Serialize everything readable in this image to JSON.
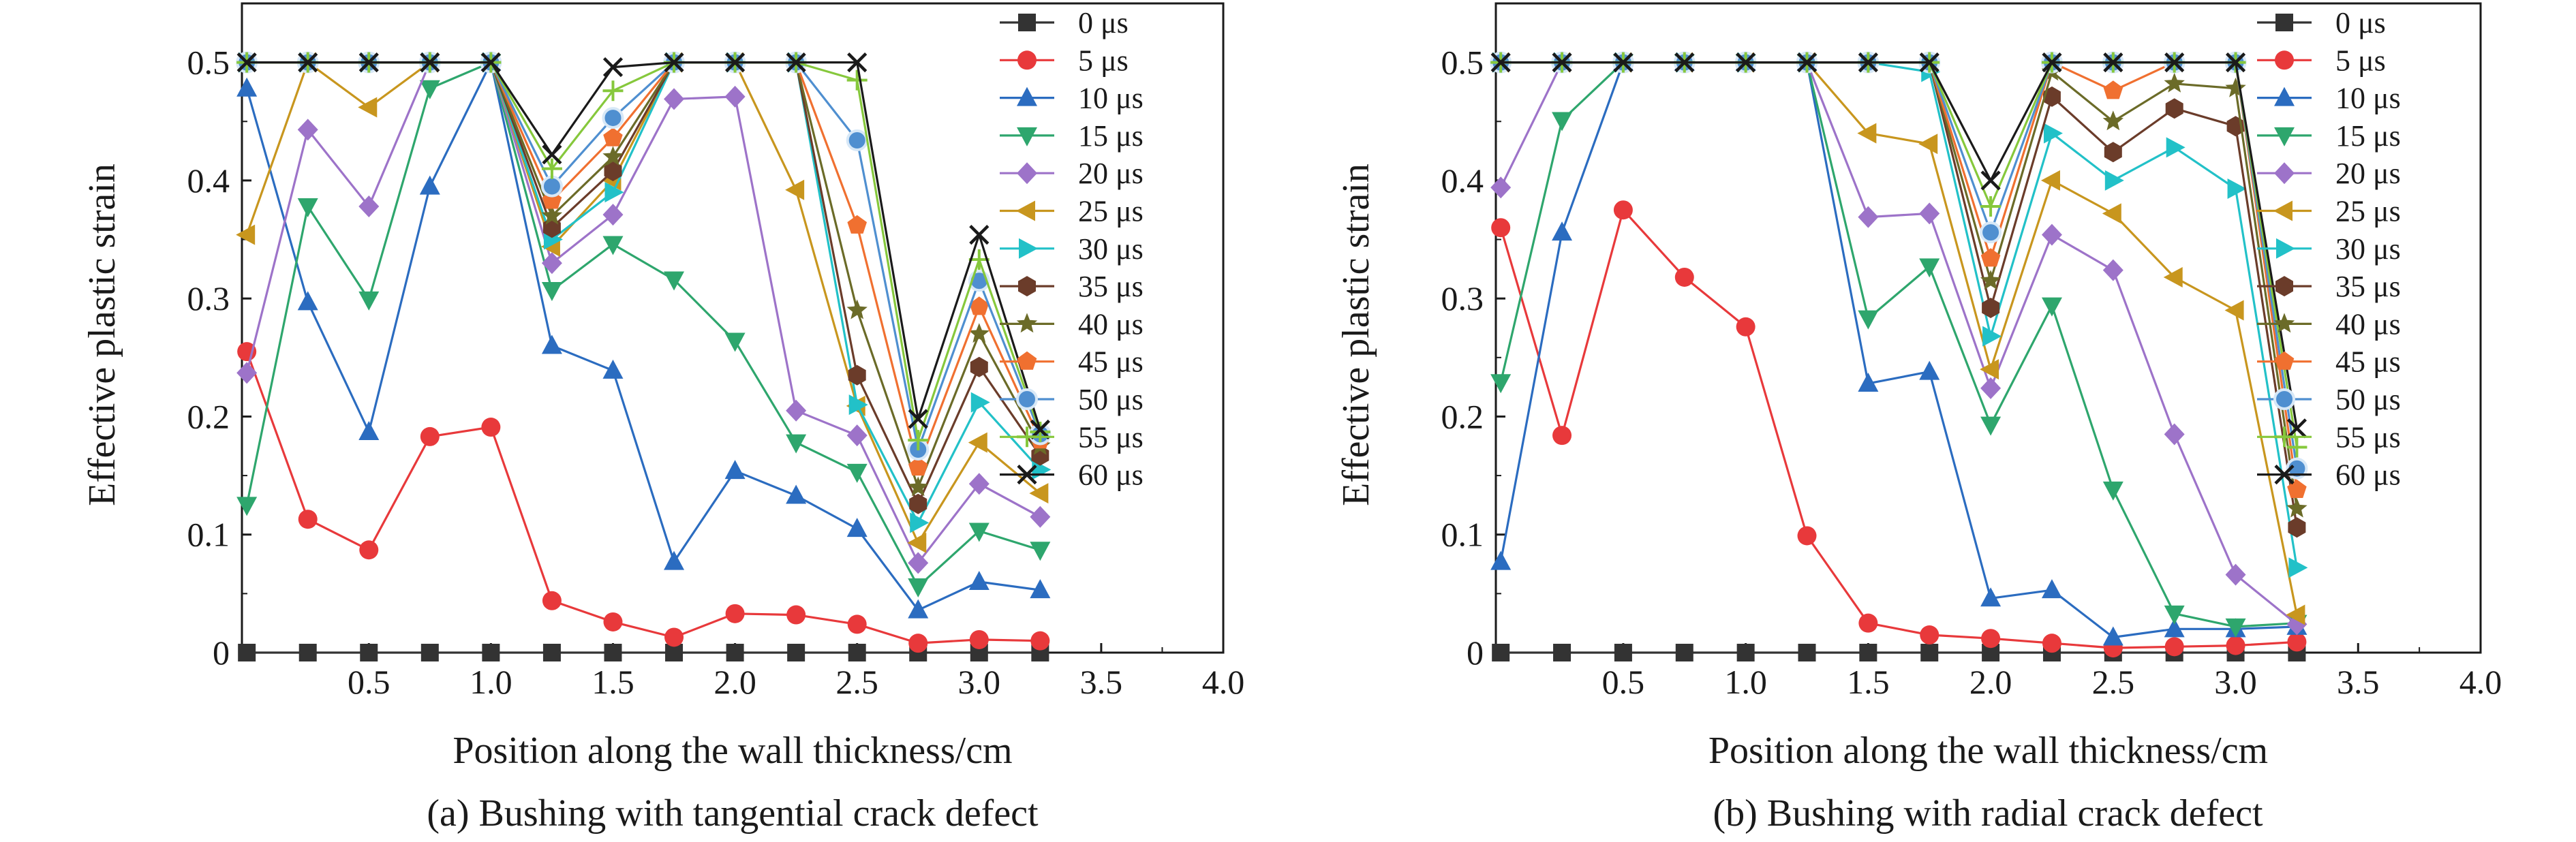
{
  "chart_data": [
    {
      "type": "line",
      "caption": "(a) Bushing with tangential crack defect",
      "xlabel": "Position along the wall thickness/cm",
      "ylabel": "Effective plastic strain",
      "xlim": [
        -0.02,
        4.0
      ],
      "ylim": [
        0,
        0.55
      ],
      "xticks": [
        "0.5",
        "1.0",
        "1.5",
        "2.0",
        "2.5",
        "3.0",
        "3.5",
        "4.0"
      ],
      "yticks": [
        "0",
        "0.1",
        "0.2",
        "0.3",
        "0.4",
        "0.5"
      ],
      "legend_position": "top-right",
      "x": [
        0,
        0.25,
        0.5,
        0.75,
        1.0,
        1.25,
        1.5,
        1.75,
        2.0,
        2.25,
        2.5,
        2.75,
        3.0,
        3.25
      ],
      "series": [
        {
          "name": "0 μs",
          "color": "#333333",
          "marker": "square",
          "values": [
            0,
            0,
            0,
            0,
            0,
            0,
            0,
            0,
            0,
            0,
            0,
            0,
            0,
            0
          ]
        },
        {
          "name": "5 μs",
          "color": "#e8393b",
          "marker": "circle",
          "values": [
            0.255,
            0.113,
            0.087,
            0.183,
            0.191,
            0.044,
            0.026,
            0.013,
            0.033,
            0.032,
            0.024,
            0.008,
            0.011,
            0.01
          ]
        },
        {
          "name": "10 μs",
          "color": "#2b6cc0",
          "marker": "triangle-up",
          "values": [
            0.478,
            0.297,
            0.187,
            0.395,
            0.5,
            0.26,
            0.239,
            0.077,
            0.154,
            0.133,
            0.105,
            0.036,
            0.06,
            0.053
          ]
        },
        {
          "name": "15 μs",
          "color": "#2ea66d",
          "marker": "triangle-down",
          "values": [
            0.125,
            0.378,
            0.299,
            0.478,
            0.5,
            0.307,
            0.346,
            0.316,
            0.264,
            0.178,
            0.153,
            0.056,
            0.103,
            0.087
          ]
        },
        {
          "name": "20 μs",
          "color": "#9d73c9",
          "marker": "diamond",
          "values": [
            0.237,
            0.443,
            0.378,
            0.5,
            0.5,
            0.33,
            0.371,
            0.469,
            0.471,
            0.205,
            0.184,
            0.076,
            0.143,
            0.115
          ]
        },
        {
          "name": "25 μs",
          "color": "#c8961e",
          "marker": "triangle-left",
          "values": [
            0.354,
            0.5,
            0.462,
            0.5,
            0.5,
            0.344,
            0.4,
            0.5,
            0.5,
            0.392,
            0.209,
            0.093,
            0.178,
            0.135
          ]
        },
        {
          "name": "30 μs",
          "color": "#22c1c8",
          "marker": "triangle-right",
          "values": [
            0.5,
            0.5,
            0.5,
            0.5,
            0.5,
            0.35,
            0.39,
            0.5,
            0.5,
            0.5,
            0.21,
            0.11,
            0.212,
            0.155
          ]
        },
        {
          "name": "35 μs",
          "color": "#6b3c2a",
          "marker": "hexagon",
          "values": [
            0.5,
            0.5,
            0.5,
            0.5,
            0.5,
            0.36,
            0.408,
            0.5,
            0.5,
            0.5,
            0.235,
            0.126,
            0.242,
            0.167
          ]
        },
        {
          "name": "40 μs",
          "color": "#6b6b28",
          "marker": "star",
          "values": [
            0.5,
            0.5,
            0.5,
            0.5,
            0.5,
            0.37,
            0.42,
            0.5,
            0.5,
            0.5,
            0.29,
            0.14,
            0.27,
            0.175
          ]
        },
        {
          "name": "45 μs",
          "color": "#f07030",
          "marker": "pentagon",
          "values": [
            0.5,
            0.5,
            0.5,
            0.5,
            0.5,
            0.383,
            0.436,
            0.5,
            0.5,
            0.5,
            0.362,
            0.157,
            0.293,
            0.18
          ]
        },
        {
          "name": "50 μs",
          "color": "#4f8fd0",
          "marker": "sphere",
          "values": [
            0.5,
            0.5,
            0.5,
            0.5,
            0.5,
            0.395,
            0.453,
            0.5,
            0.5,
            0.5,
            0.434,
            0.172,
            0.315,
            0.185
          ]
        },
        {
          "name": "55 μs",
          "color": "#86c83c",
          "marker": "plus",
          "values": [
            0.5,
            0.5,
            0.5,
            0.5,
            0.5,
            0.41,
            0.476,
            0.5,
            0.5,
            0.5,
            0.485,
            0.18,
            0.333,
            0.187
          ]
        },
        {
          "name": "60 μs",
          "color": "#1a1a1a",
          "marker": "x",
          "values": [
            0.5,
            0.5,
            0.5,
            0.5,
            0.5,
            0.422,
            0.496,
            0.5,
            0.5,
            0.5,
            0.5,
            0.198,
            0.354,
            0.189
          ]
        }
      ]
    },
    {
      "type": "line",
      "caption": "(b) Bushing with radial crack defect",
      "xlabel": "Position along the wall thickness/cm",
      "ylabel": "Effective plastic strain",
      "xlim": [
        -0.02,
        4.0
      ],
      "ylim": [
        0,
        0.55
      ],
      "xticks": [
        "0.5",
        "1.0",
        "1.5",
        "2.0",
        "2.5",
        "3.0",
        "3.5",
        "4.0"
      ],
      "yticks": [
        "0",
        "0.1",
        "0.2",
        "0.3",
        "0.4",
        "0.5"
      ],
      "legend_position": "top-right",
      "x": [
        0,
        0.25,
        0.5,
        0.75,
        1.0,
        1.25,
        1.5,
        1.75,
        2.0,
        2.25,
        2.5,
        2.75,
        3.0,
        3.25
      ],
      "series": [
        {
          "name": "0 μs",
          "color": "#333333",
          "marker": "square",
          "values": [
            0,
            0,
            0,
            0,
            0,
            0,
            0,
            0,
            0,
            0,
            0,
            0,
            0,
            0
          ]
        },
        {
          "name": "5 μs",
          "color": "#e8393b",
          "marker": "circle",
          "values": [
            0.36,
            0.184,
            0.375,
            0.318,
            0.276,
            0.099,
            0.025,
            0.015,
            0.012,
            0.008,
            0.004,
            0.005,
            0.006,
            0.009
          ]
        },
        {
          "name": "10 μs",
          "color": "#2b6cc0",
          "marker": "triangle-up",
          "values": [
            0.077,
            0.356,
            0.5,
            0.5,
            0.5,
            0.5,
            0.228,
            0.238,
            0.046,
            0.053,
            0.013,
            0.02,
            0.02,
            0.022
          ]
        },
        {
          "name": "15 μs",
          "color": "#2ea66d",
          "marker": "triangle-down",
          "values": [
            0.229,
            0.451,
            0.5,
            0.5,
            0.5,
            0.5,
            0.283,
            0.327,
            0.193,
            0.294,
            0.138,
            0.033,
            0.022,
            0.025
          ]
        },
        {
          "name": "20 μs",
          "color": "#9d73c9",
          "marker": "diamond",
          "values": [
            0.394,
            0.5,
            0.5,
            0.5,
            0.5,
            0.5,
            0.369,
            0.372,
            0.224,
            0.354,
            0.324,
            0.185,
            0.066,
            0.024
          ]
        },
        {
          "name": "25 μs",
          "color": "#c8961e",
          "marker": "triangle-left",
          "values": [
            0.5,
            0.5,
            0.5,
            0.5,
            0.5,
            0.5,
            0.44,
            0.431,
            0.24,
            0.4,
            0.372,
            0.318,
            0.29,
            0.032
          ]
        },
        {
          "name": "30 μs",
          "color": "#22c1c8",
          "marker": "triangle-right",
          "values": [
            0.5,
            0.5,
            0.5,
            0.5,
            0.5,
            0.5,
            0.5,
            0.492,
            0.268,
            0.44,
            0.4,
            0.428,
            0.393,
            0.072
          ]
        },
        {
          "name": "35 μs",
          "color": "#6b3c2a",
          "marker": "hexagon",
          "values": [
            0.5,
            0.5,
            0.5,
            0.5,
            0.5,
            0.5,
            0.5,
            0.5,
            0.292,
            0.471,
            0.424,
            0.461,
            0.446,
            0.106
          ]
        },
        {
          "name": "40 μs",
          "color": "#6b6b28",
          "marker": "star",
          "values": [
            0.5,
            0.5,
            0.5,
            0.5,
            0.5,
            0.5,
            0.5,
            0.5,
            0.315,
            0.492,
            0.45,
            0.482,
            0.478,
            0.122
          ]
        },
        {
          "name": "45 μs",
          "color": "#f07030",
          "marker": "pentagon",
          "values": [
            0.5,
            0.5,
            0.5,
            0.5,
            0.5,
            0.5,
            0.5,
            0.5,
            0.334,
            0.5,
            0.476,
            0.5,
            0.5,
            0.138
          ]
        },
        {
          "name": "50 μs",
          "color": "#4f8fd0",
          "marker": "sphere",
          "values": [
            0.5,
            0.5,
            0.5,
            0.5,
            0.5,
            0.5,
            0.5,
            0.5,
            0.356,
            0.5,
            0.5,
            0.5,
            0.5,
            0.156
          ]
        },
        {
          "name": "55 μs",
          "color": "#86c83c",
          "marker": "plus",
          "values": [
            0.5,
            0.5,
            0.5,
            0.5,
            0.5,
            0.5,
            0.5,
            0.5,
            0.378,
            0.5,
            0.5,
            0.5,
            0.5,
            0.174
          ]
        },
        {
          "name": "60 μs",
          "color": "#1a1a1a",
          "marker": "x",
          "values": [
            0.5,
            0.5,
            0.5,
            0.5,
            0.5,
            0.5,
            0.5,
            0.5,
            0.4,
            0.5,
            0.5,
            0.5,
            0.5,
            0.19
          ]
        }
      ]
    }
  ]
}
